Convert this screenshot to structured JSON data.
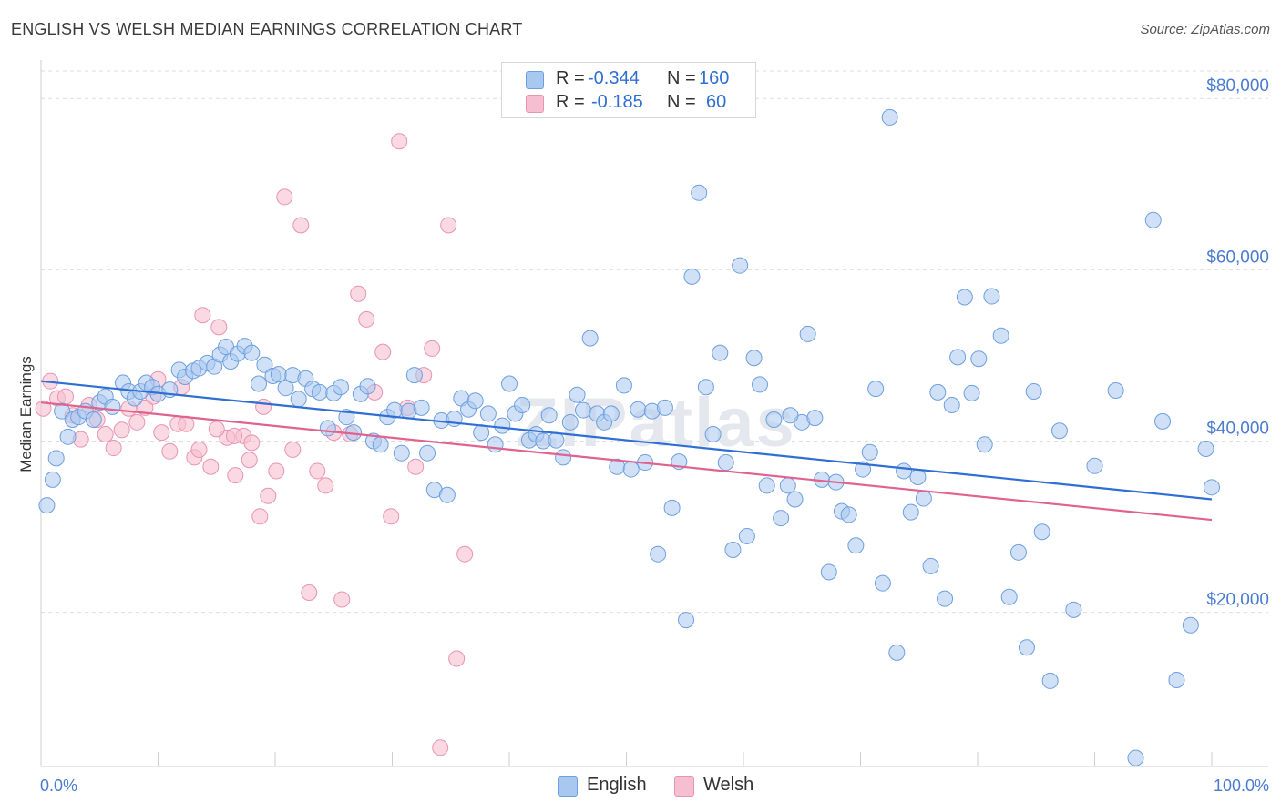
{
  "title": "ENGLISH VS WELSH MEDIAN EARNINGS CORRELATION CHART",
  "source": "Source: ZipAtlas.com",
  "watermark": "ZIPatlas",
  "legend": {
    "english": {
      "r_label": "R =",
      "r_value": "-0.344",
      "n_label": "N =",
      "n_value": "160"
    },
    "welsh": {
      "r_label": "R =",
      "r_value": "-0.185",
      "n_label": "N =",
      "n_value": "60"
    }
  },
  "colors": {
    "english_fill": "#a9c8f0",
    "english_stroke": "#6d9fe0",
    "english_line": "#2f6fd3",
    "welsh_fill": "#f6bfd1",
    "welsh_stroke": "#e993b2",
    "welsh_line": "#e0628f",
    "axis_text": "#4a7bd0",
    "grid": "#dddddd"
  },
  "chart_data": {
    "type": "scatter",
    "title": "ENGLISH VS WELSH MEDIAN EARNINGS CORRELATION CHART",
    "xlabel": "",
    "ylabel": "Median Earnings",
    "xlim": [
      0,
      100
    ],
    "ylim": [
      2000,
      83000
    ],
    "x_tick_labels": [
      "0.0%",
      "100.0%"
    ],
    "y_ticks": [
      20000,
      40000,
      60000,
      80000
    ],
    "y_tick_labels": [
      "$20,000",
      "$40,000",
      "$60,000",
      "$80,000"
    ],
    "grid": "horizontal dashed",
    "legend_position": "top-center",
    "series": [
      {
        "name": "English",
        "trend": {
          "x": [
            0,
            100
          ],
          "y": [
            47000,
            33200
          ]
        },
        "points": [
          [
            0.5,
            32500
          ],
          [
            1.0,
            35500
          ],
          [
            1.3,
            38000
          ],
          [
            1.8,
            43500
          ],
          [
            2.3,
            40500
          ],
          [
            2.7,
            42500
          ],
          [
            3.2,
            42800
          ],
          [
            3.8,
            43500
          ],
          [
            4.5,
            42500
          ],
          [
            5.0,
            44500
          ],
          [
            5.5,
            45200
          ],
          [
            6.1,
            44000
          ],
          [
            7.0,
            46800
          ],
          [
            7.5,
            45800
          ],
          [
            8.0,
            45000
          ],
          [
            8.5,
            45800
          ],
          [
            9.0,
            46800
          ],
          [
            9.5,
            46300
          ],
          [
            10.0,
            45500
          ],
          [
            11.0,
            46000
          ],
          [
            11.8,
            48300
          ],
          [
            12.3,
            47500
          ],
          [
            13.0,
            48200
          ],
          [
            13.5,
            48500
          ],
          [
            14.2,
            49100
          ],
          [
            14.8,
            48700
          ],
          [
            15.3,
            50100
          ],
          [
            15.8,
            51000
          ],
          [
            16.2,
            49300
          ],
          [
            16.8,
            50200
          ],
          [
            17.4,
            51100
          ],
          [
            18.0,
            50300
          ],
          [
            18.6,
            46700
          ],
          [
            19.1,
            48900
          ],
          [
            19.8,
            47600
          ],
          [
            20.3,
            47800
          ],
          [
            20.9,
            46200
          ],
          [
            21.5,
            47700
          ],
          [
            22.0,
            44900
          ],
          [
            22.6,
            47300
          ],
          [
            23.2,
            46100
          ],
          [
            23.8,
            45700
          ],
          [
            24.5,
            41500
          ],
          [
            25.0,
            45600
          ],
          [
            25.6,
            46300
          ],
          [
            26.1,
            42800
          ],
          [
            26.7,
            41000
          ],
          [
            27.3,
            45500
          ],
          [
            27.9,
            46400
          ],
          [
            28.4,
            40000
          ],
          [
            29.0,
            39600
          ],
          [
            29.6,
            42800
          ],
          [
            30.2,
            43600
          ],
          [
            30.8,
            38600
          ],
          [
            31.4,
            43500
          ],
          [
            31.9,
            47700
          ],
          [
            32.5,
            43900
          ],
          [
            33.0,
            38600
          ],
          [
            33.6,
            34300
          ],
          [
            34.2,
            42400
          ],
          [
            34.7,
            33700
          ],
          [
            35.3,
            42600
          ],
          [
            35.9,
            45000
          ],
          [
            36.5,
            43700
          ],
          [
            37.1,
            44700
          ],
          [
            37.6,
            41000
          ],
          [
            38.2,
            43200
          ],
          [
            38.8,
            39600
          ],
          [
            39.4,
            41800
          ],
          [
            40.0,
            46700
          ],
          [
            40.5,
            43200
          ],
          [
            41.1,
            44200
          ],
          [
            41.7,
            40100
          ],
          [
            42.3,
            40800
          ],
          [
            42.9,
            40000
          ],
          [
            43.4,
            43000
          ],
          [
            44.0,
            40100
          ],
          [
            44.6,
            38100
          ],
          [
            45.2,
            42200
          ],
          [
            45.8,
            45400
          ],
          [
            46.3,
            43600
          ],
          [
            46.9,
            52000
          ],
          [
            47.5,
            43200
          ],
          [
            48.1,
            42200
          ],
          [
            48.7,
            43200
          ],
          [
            49.2,
            37000
          ],
          [
            49.8,
            46500
          ],
          [
            50.4,
            36700
          ],
          [
            51.0,
            43700
          ],
          [
            51.6,
            37500
          ],
          [
            52.2,
            43500
          ],
          [
            52.7,
            26800
          ],
          [
            53.3,
            43900
          ],
          [
            53.9,
            32200
          ],
          [
            54.5,
            37600
          ],
          [
            55.1,
            19100
          ],
          [
            55.6,
            59200
          ],
          [
            56.2,
            69000
          ],
          [
            56.8,
            46300
          ],
          [
            57.4,
            40800
          ],
          [
            58.0,
            50300
          ],
          [
            58.5,
            37500
          ],
          [
            59.1,
            27300
          ],
          [
            59.7,
            60500
          ],
          [
            60.3,
            28900
          ],
          [
            60.9,
            49700
          ],
          [
            61.4,
            46600
          ],
          [
            62.0,
            34800
          ],
          [
            62.6,
            42500
          ],
          [
            63.2,
            31000
          ],
          [
            63.8,
            34800
          ],
          [
            64.4,
            33200
          ],
          [
            65.0,
            42200
          ],
          [
            65.5,
            52500
          ],
          [
            66.1,
            42700
          ],
          [
            66.7,
            35500
          ],
          [
            67.3,
            24700
          ],
          [
            67.9,
            35200
          ],
          [
            68.4,
            31800
          ],
          [
            69.0,
            31400
          ],
          [
            69.6,
            27800
          ],
          [
            70.2,
            36700
          ],
          [
            70.8,
            38700
          ],
          [
            71.3,
            46100
          ],
          [
            71.9,
            23400
          ],
          [
            72.5,
            77800
          ],
          [
            73.1,
            15300
          ],
          [
            73.7,
            36500
          ],
          [
            74.3,
            31700
          ],
          [
            74.9,
            35800
          ],
          [
            75.4,
            33300
          ],
          [
            76.0,
            25400
          ],
          [
            76.6,
            45700
          ],
          [
            77.2,
            21600
          ],
          [
            77.8,
            44200
          ],
          [
            78.3,
            49800
          ],
          [
            78.9,
            56800
          ],
          [
            79.5,
            45600
          ],
          [
            80.1,
            49600
          ],
          [
            80.6,
            39600
          ],
          [
            81.2,
            56900
          ],
          [
            82.0,
            52300
          ],
          [
            82.7,
            21800
          ],
          [
            83.5,
            27000
          ],
          [
            84.2,
            15900
          ],
          [
            84.8,
            45800
          ],
          [
            85.5,
            29400
          ],
          [
            86.2,
            12000
          ],
          [
            87.0,
            41200
          ],
          [
            88.2,
            20300
          ],
          [
            90.0,
            37100
          ],
          [
            91.8,
            45900
          ],
          [
            93.5,
            3000
          ],
          [
            95.0,
            65800
          ],
          [
            95.8,
            42300
          ],
          [
            97.0,
            12100
          ],
          [
            98.2,
            18500
          ],
          [
            99.5,
            39100
          ],
          [
            100,
            34600
          ],
          [
            64.0,
            43000
          ]
        ]
      },
      {
        "name": "Welsh",
        "trend": {
          "x": [
            0,
            100
          ],
          "y": [
            44500,
            30800
          ]
        },
        "points": [
          [
            0.2,
            43800
          ],
          [
            0.8,
            47000
          ],
          [
            1.4,
            45000
          ],
          [
            2.1,
            45200
          ],
          [
            2.7,
            43000
          ],
          [
            3.4,
            40200
          ],
          [
            4.1,
            44200
          ],
          [
            4.8,
            42500
          ],
          [
            5.5,
            40800
          ],
          [
            6.2,
            39200
          ],
          [
            6.9,
            41300
          ],
          [
            7.5,
            43800
          ],
          [
            8.2,
            42200
          ],
          [
            8.9,
            43900
          ],
          [
            9.6,
            45200
          ],
          [
            10.3,
            41000
          ],
          [
            11.0,
            38800
          ],
          [
            11.7,
            42000
          ],
          [
            12.4,
            42000
          ],
          [
            13.1,
            38100
          ],
          [
            13.8,
            54700
          ],
          [
            14.5,
            37000
          ],
          [
            15.2,
            53300
          ],
          [
            15.9,
            40400
          ],
          [
            16.6,
            36000
          ],
          [
            17.3,
            40600
          ],
          [
            18.0,
            39800
          ],
          [
            18.7,
            31200
          ],
          [
            19.4,
            33600
          ],
          [
            20.1,
            36500
          ],
          [
            20.8,
            68500
          ],
          [
            21.5,
            39000
          ],
          [
            22.2,
            65200
          ],
          [
            22.9,
            22300
          ],
          [
            23.6,
            36500
          ],
          [
            24.3,
            34800
          ],
          [
            25.0,
            41000
          ],
          [
            25.7,
            21500
          ],
          [
            26.4,
            40800
          ],
          [
            27.1,
            57200
          ],
          [
            27.8,
            54200
          ],
          [
            28.5,
            45700
          ],
          [
            29.2,
            50400
          ],
          [
            29.9,
            31200
          ],
          [
            30.6,
            75000
          ],
          [
            31.3,
            43900
          ],
          [
            32.0,
            37000
          ],
          [
            32.7,
            47700
          ],
          [
            33.4,
            50800
          ],
          [
            34.1,
            4200
          ],
          [
            34.8,
            65200
          ],
          [
            35.5,
            14600
          ],
          [
            36.2,
            26800
          ],
          [
            10.0,
            47200
          ],
          [
            12.0,
            46300
          ],
          [
            13.5,
            39000
          ],
          [
            15.0,
            41400
          ],
          [
            16.5,
            40600
          ],
          [
            17.8,
            37800
          ],
          [
            19.0,
            44000
          ]
        ]
      }
    ]
  }
}
